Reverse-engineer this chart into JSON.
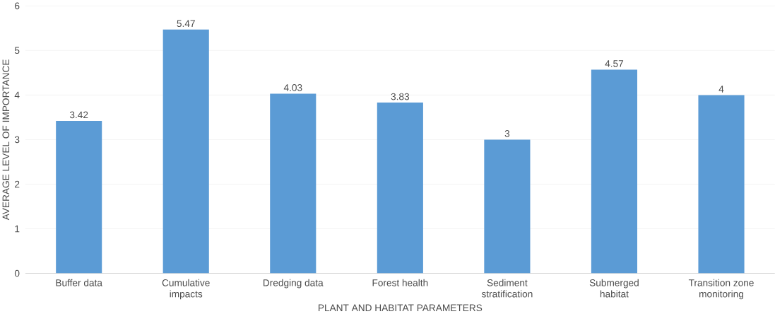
{
  "chart_data": {
    "type": "bar",
    "xlabel": "PLANT AND HABITAT PARAMETERS",
    "ylabel": "AVERAGE LEVEL OF IMPORTANCE",
    "categories": [
      "Buffer data",
      "Cumulative impacts",
      "Dredging data",
      "Forest health",
      "Sediment stratification",
      "Submerged habitat",
      "Transition zone monitoring"
    ],
    "values": [
      3.42,
      5.47,
      4.03,
      3.83,
      3,
      4.57,
      4
    ],
    "color": "#5b9bd5",
    "ylim": [
      0,
      6
    ],
    "yticks": [
      0,
      1,
      2,
      3,
      4,
      5,
      6
    ],
    "grid": "y",
    "data_labels": true
  }
}
